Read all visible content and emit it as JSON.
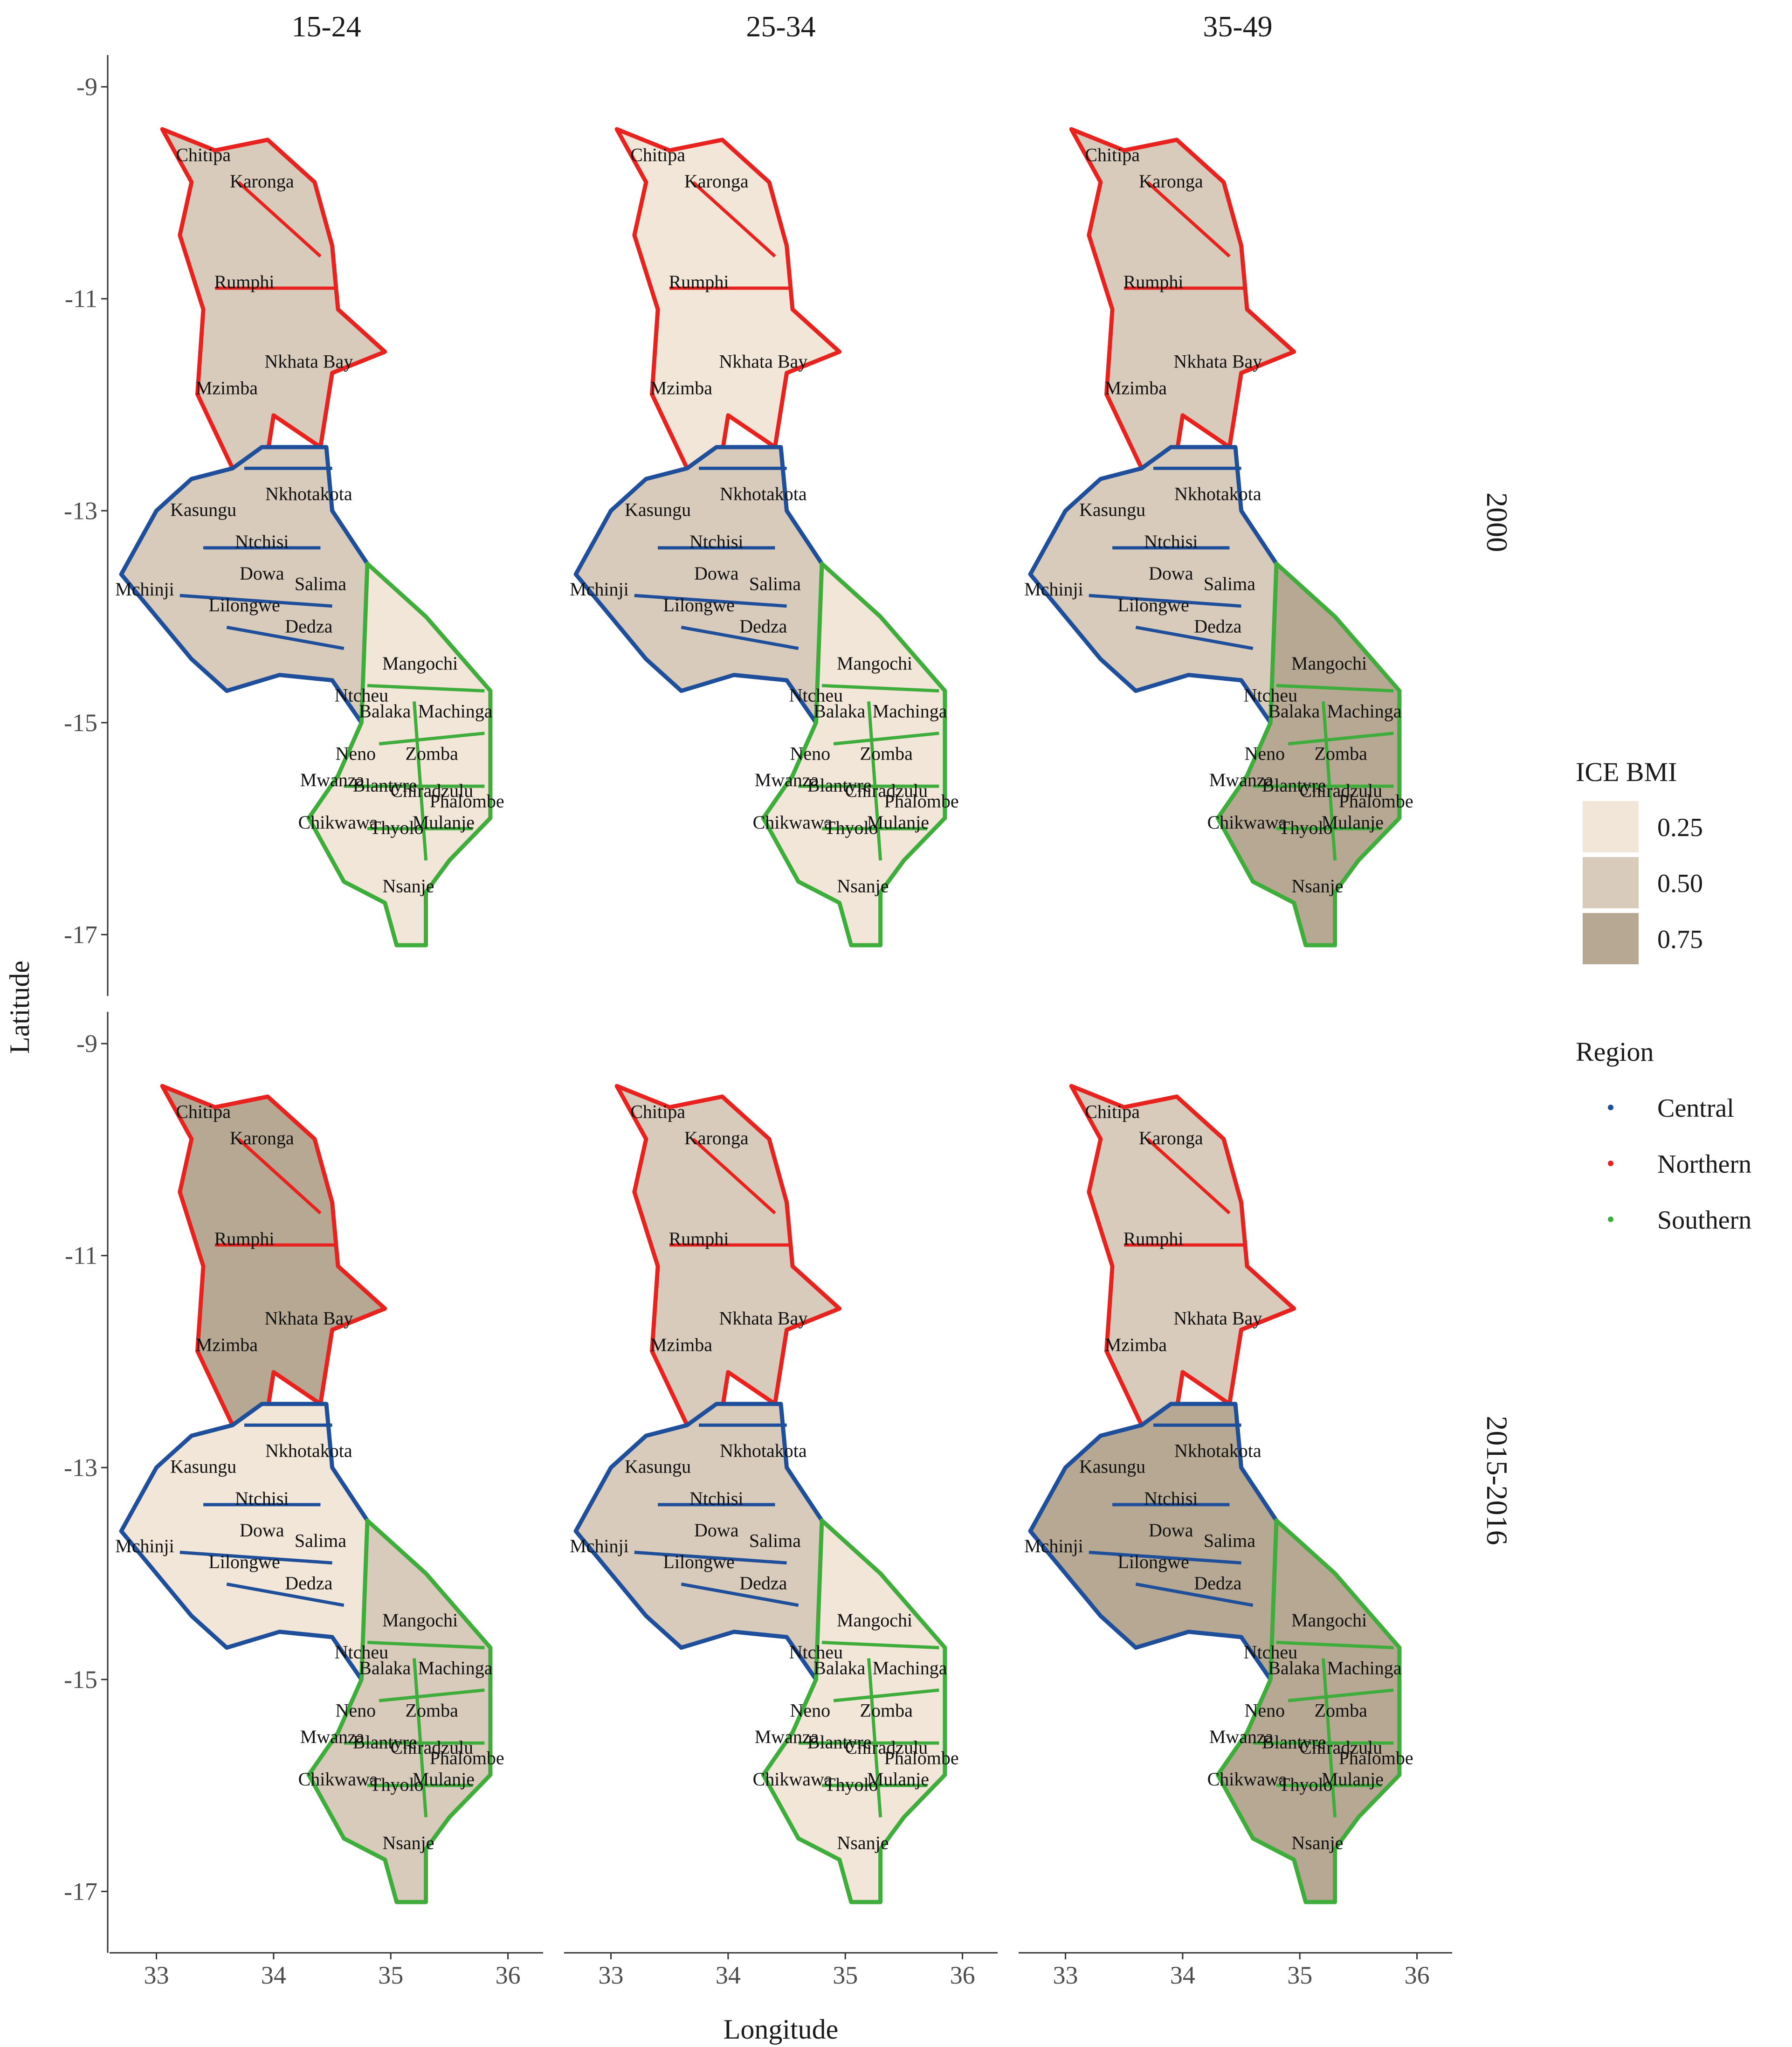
{
  "columns": [
    "15-24",
    "25-34",
    "35-49"
  ],
  "rows": [
    "2000",
    "2015-2016"
  ],
  "axes": {
    "x_title": "Longitude",
    "y_title": "Latitude",
    "x_ticks": [
      "33",
      "34",
      "35",
      "36"
    ],
    "y_ticks": [
      "-9",
      "-11",
      "-13",
      "-15",
      "-17"
    ],
    "x_range": [
      32.6,
      36.3
    ],
    "y_range": [
      -17.5,
      -8.7
    ]
  },
  "legend_fill": {
    "title": "ICE BMI",
    "entries": [
      {
        "label": "0.25",
        "color": "#f1e6d8"
      },
      {
        "label": "0.50",
        "color": "#d8cbbb"
      },
      {
        "label": "0.75",
        "color": "#b6a893"
      }
    ]
  },
  "legend_region": {
    "title": "Region",
    "entries": [
      {
        "label": "Central",
        "color": "#1f4e9a"
      },
      {
        "label": "Northern",
        "color": "#e8231f"
      },
      {
        "label": "Southern",
        "color": "#3fad3c"
      }
    ]
  },
  "districts": [
    {
      "name": "Chitipa",
      "region": "Northern",
      "lon": 33.4,
      "lat": -9.7
    },
    {
      "name": "Karonga",
      "region": "Northern",
      "lon": 33.9,
      "lat": -9.95
    },
    {
      "name": "Rumphi",
      "region": "Northern",
      "lon": 33.75,
      "lat": -10.9
    },
    {
      "name": "Nkhata Bay",
      "region": "Northern",
      "lon": 34.3,
      "lat": -11.65
    },
    {
      "name": "Mzimba",
      "region": "Northern",
      "lon": 33.6,
      "lat": -11.9
    },
    {
      "name": "Kasungu",
      "region": "Central",
      "lon": 33.4,
      "lat": -13.05
    },
    {
      "name": "Nkhotakota",
      "region": "Central",
      "lon": 34.3,
      "lat": -12.9
    },
    {
      "name": "Ntchisi",
      "region": "Central",
      "lon": 33.9,
      "lat": -13.35
    },
    {
      "name": "Dowa",
      "region": "Central",
      "lon": 33.9,
      "lat": -13.65
    },
    {
      "name": "Salima",
      "region": "Central",
      "lon": 34.4,
      "lat": -13.75
    },
    {
      "name": "Mchinji",
      "region": "Central",
      "lon": 32.9,
      "lat": -13.8
    },
    {
      "name": "Lilongwe",
      "region": "Central",
      "lon": 33.75,
      "lat": -13.95
    },
    {
      "name": "Dedza",
      "region": "Central",
      "lon": 34.3,
      "lat": -14.15
    },
    {
      "name": "Mangochi",
      "region": "Southern",
      "lon": 35.25,
      "lat": -14.5
    },
    {
      "name": "Ntcheu",
      "region": "Central",
      "lon": 34.75,
      "lat": -14.8
    },
    {
      "name": "Balaka",
      "region": "Southern",
      "lon": 34.95,
      "lat": -14.95
    },
    {
      "name": "Machinga",
      "region": "Southern",
      "lon": 35.55,
      "lat": -14.95
    },
    {
      "name": "Neno",
      "region": "Southern",
      "lon": 34.7,
      "lat": -15.35
    },
    {
      "name": "Zomba",
      "region": "Southern",
      "lon": 35.35,
      "lat": -15.35
    },
    {
      "name": "Mwanza",
      "region": "Southern",
      "lon": 34.5,
      "lat": -15.6
    },
    {
      "name": "Blantyre",
      "region": "Southern",
      "lon": 34.95,
      "lat": -15.65
    },
    {
      "name": "Chiradzulu",
      "region": "Southern",
      "lon": 35.35,
      "lat": -15.7
    },
    {
      "name": "Phalombe",
      "region": "Southern",
      "lon": 35.65,
      "lat": -15.8
    },
    {
      "name": "Chikwawa",
      "region": "Southern",
      "lon": 34.55,
      "lat": -16.0
    },
    {
      "name": "Thyolo",
      "region": "Southern",
      "lon": 35.05,
      "lat": -16.05
    },
    {
      "name": "Mulanje",
      "region": "Southern",
      "lon": 35.45,
      "lat": -16.0
    },
    {
      "name": "Nsanje",
      "region": "Southern",
      "lon": 35.15,
      "lat": -16.6
    }
  ],
  "ice_bmi": {
    "2000": {
      "15-24": {
        "Northern": 0.5,
        "Central": 0.5,
        "Southern": 0.25
      },
      "25-34": {
        "Northern": 0.25,
        "Central": 0.5,
        "Southern": 0.25
      },
      "35-49": {
        "Northern": 0.5,
        "Central": 0.5,
        "Southern": 0.75
      }
    },
    "2015-2016": {
      "15-24": {
        "Northern": 0.75,
        "Central": 0.25,
        "Southern": 0.5
      },
      "25-34": {
        "Northern": 0.5,
        "Central": 0.5,
        "Southern": 0.25
      },
      "35-49": {
        "Northern": 0.5,
        "Central": 0.75,
        "Southern": 0.75
      }
    }
  }
}
